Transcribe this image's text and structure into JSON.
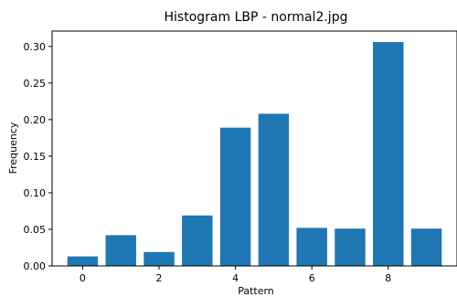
{
  "chart_data": {
    "type": "bar",
    "title": "Histogram LBP - normal2.jpg",
    "xlabel": "Pattern",
    "ylabel": "Frequency",
    "x": [
      0,
      1,
      2,
      3,
      4,
      5,
      6,
      7,
      8,
      9
    ],
    "values": [
      0.013,
      0.042,
      0.019,
      0.069,
      0.189,
      0.208,
      0.052,
      0.051,
      0.306,
      0.051
    ],
    "xticks": [
      "0",
      "2",
      "4",
      "6",
      "8"
    ],
    "xtick_values": [
      0,
      2,
      4,
      6,
      8
    ],
    "yticks": [
      "0.00",
      "0.05",
      "0.10",
      "0.15",
      "0.20",
      "0.25",
      "0.30"
    ],
    "ytick_values": [
      0,
      0.05,
      0.1,
      0.15,
      0.2,
      0.25,
      0.3
    ],
    "xlim": [
      -0.8,
      9.8
    ],
    "ylim": [
      0,
      0.321
    ],
    "grid": false,
    "bar_color": "#1f77b4"
  }
}
